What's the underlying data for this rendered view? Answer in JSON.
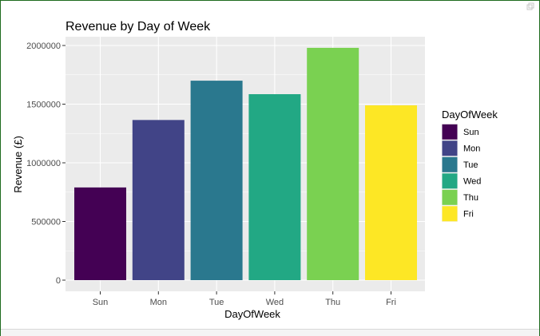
{
  "chart_data": {
    "type": "bar",
    "title": "Revenue by Day of Week",
    "xlabel": "DayOfWeek",
    "ylabel": "Revenue (£)",
    "categories": [
      "Sun",
      "Mon",
      "Tue",
      "Wed",
      "Thu",
      "Fri"
    ],
    "values": [
      790000,
      1365000,
      1700000,
      1585000,
      1980000,
      1490000
    ],
    "colors": [
      "#440154",
      "#414487",
      "#2a788e",
      "#22a884",
      "#7ad151",
      "#fde725"
    ],
    "ylim": [
      0,
      2100000
    ],
    "yticks": [
      {
        "value": 0,
        "label": "0"
      },
      {
        "value": 500000,
        "label": "500000"
      },
      {
        "value": 1000000,
        "label": "1000000"
      },
      {
        "value": 1500000,
        "label": "1500000"
      },
      {
        "value": 2000000,
        "label": "2000000"
      }
    ],
    "grid": true,
    "panel_background": "#ebebeb",
    "legend": {
      "title": "DayOfWeek",
      "position": "right",
      "entries": [
        "Sun",
        "Mon",
        "Tue",
        "Wed",
        "Thu",
        "Fri"
      ]
    }
  }
}
